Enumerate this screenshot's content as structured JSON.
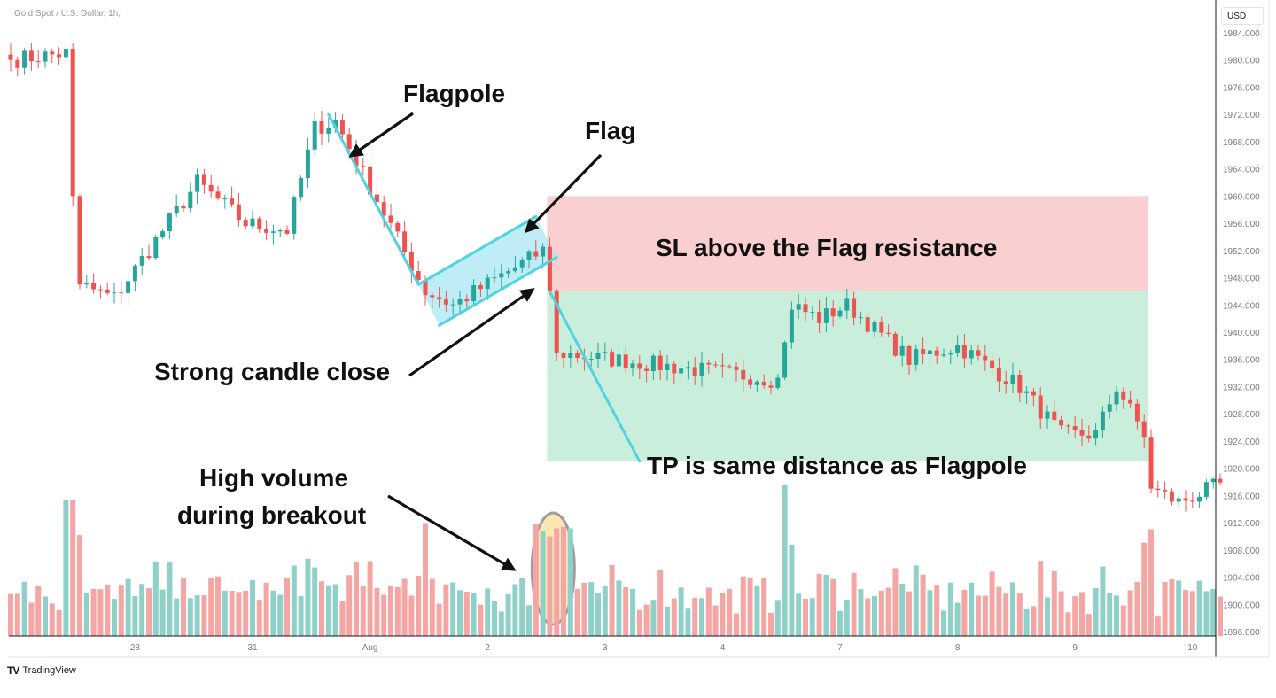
{
  "header": {
    "symbol_title": "Gold Spot / U.S. Dollar, 1h,",
    "currency": "USD"
  },
  "footer": {
    "brand": "TradingView",
    "brand_mark": "TV"
  },
  "colors": {
    "up": "#26a69a",
    "down": "#ef5350",
    "vol_up": "#8fd0c9",
    "vol_down": "#f3a6a4",
    "sl_zone": "#f9cfcf",
    "tp_zone": "#c9efdc",
    "flag_fill": "#a9e7f1",
    "pattern_line": "#4fd3e0",
    "highlight_fill": "#fde5b4",
    "highlight_stroke": "#9e9e9e"
  },
  "annotations": {
    "flagpole": "Flagpole",
    "flag": "Flag",
    "sl": "SL above the Flag resistance",
    "strong_close": "Strong candle close",
    "tp": "TP is same distance as Flagpole",
    "volume_line1": "High volume",
    "volume_line2": "during breakout"
  },
  "chart_data": {
    "type": "candlestick",
    "title": "Gold Spot / U.S. Dollar, 1h,",
    "y_unit": "USD",
    "ylim": [
      1894,
      1988
    ],
    "y_ticks": [
      1984,
      1980,
      1976,
      1972,
      1968,
      1964,
      1960,
      1956,
      1952,
      1948,
      1944,
      1940,
      1936,
      1932,
      1928,
      1924,
      1920,
      1916,
      1912,
      1908,
      1904,
      1900,
      1896
    ],
    "x_tick_labels": [
      "28",
      "31",
      "Aug",
      "2",
      "3",
      "4",
      "7",
      "8",
      "9",
      "10"
    ],
    "x_tick_bars": [
      18,
      35,
      52,
      69,
      86,
      103,
      120,
      137,
      154,
      171
    ],
    "bar_count": 176,
    "volume": {
      "shown": true,
      "breakout_highlight_bars": [
        76,
        81
      ]
    },
    "zones": [
      {
        "name": "SL above the Flag resistance",
        "from": 1946,
        "to": 1960,
        "bars": [
          78,
          164
        ]
      },
      {
        "name": "TP is same distance as Flagpole",
        "from": 1921,
        "to": 1946,
        "bars": [
          78,
          164
        ]
      }
    ],
    "pattern": {
      "flagpole": [
        [
          46,
          1972
        ],
        [
          59,
          1947
        ]
      ],
      "flag_channel_upper": [
        [
          59,
          1947
        ],
        [
          76,
          1957
        ]
      ],
      "flag_channel_lower": [
        [
          62,
          1941
        ],
        [
          79,
          1951
        ]
      ],
      "target_projection": [
        [
          78,
          1946
        ],
        [
          91,
          1921
        ]
      ]
    },
    "segments": [
      {
        "from": 0,
        "to": 8,
        "start": 1980,
        "end": 1981
      },
      {
        "from": 8,
        "to": 9,
        "start": 1981,
        "end": 1960
      },
      {
        "from": 9,
        "to": 10,
        "start": 1960,
        "end": 1947
      },
      {
        "from": 10,
        "to": 15,
        "start": 1947,
        "end": 1945
      },
      {
        "from": 15,
        "to": 27,
        "start": 1945,
        "end": 1962
      },
      {
        "from": 27,
        "to": 34,
        "start": 1962,
        "end": 1956
      },
      {
        "from": 34,
        "to": 40,
        "start": 1956,
        "end": 1955
      },
      {
        "from": 40,
        "to": 44,
        "start": 1955,
        "end": 1970
      },
      {
        "from": 44,
        "to": 47,
        "start": 1970,
        "end": 1971
      },
      {
        "from": 47,
        "to": 60,
        "start": 1971,
        "end": 1946
      },
      {
        "from": 60,
        "to": 64,
        "start": 1946,
        "end": 1944
      },
      {
        "from": 64,
        "to": 77,
        "start": 1944,
        "end": 1952
      },
      {
        "from": 77,
        "to": 78,
        "start": 1952,
        "end": 1946
      },
      {
        "from": 78,
        "to": 79,
        "start": 1946,
        "end": 1937
      },
      {
        "from": 79,
        "to": 111,
        "start": 1937,
        "end": 1933
      },
      {
        "from": 111,
        "to": 113,
        "start": 1933,
        "end": 1944
      },
      {
        "from": 113,
        "to": 117,
        "start": 1944,
        "end": 1942
      },
      {
        "from": 117,
        "to": 121,
        "start": 1942,
        "end": 1944
      },
      {
        "from": 121,
        "to": 130,
        "start": 1944,
        "end": 1936
      },
      {
        "from": 130,
        "to": 137,
        "start": 1936,
        "end": 1938
      },
      {
        "from": 137,
        "to": 146,
        "start": 1938,
        "end": 1932
      },
      {
        "from": 146,
        "to": 152,
        "start": 1932,
        "end": 1925
      },
      {
        "from": 152,
        "to": 157,
        "start": 1925,
        "end": 1925
      },
      {
        "from": 157,
        "to": 160,
        "start": 1925,
        "end": 1932
      },
      {
        "from": 160,
        "to": 164,
        "start": 1932,
        "end": 1925
      },
      {
        "from": 164,
        "to": 165,
        "start": 1925,
        "end": 1917
      },
      {
        "from": 165,
        "to": 169,
        "start": 1917,
        "end": 1915
      },
      {
        "from": 169,
        "to": 176,
        "start": 1915,
        "end": 1918
      }
    ]
  }
}
